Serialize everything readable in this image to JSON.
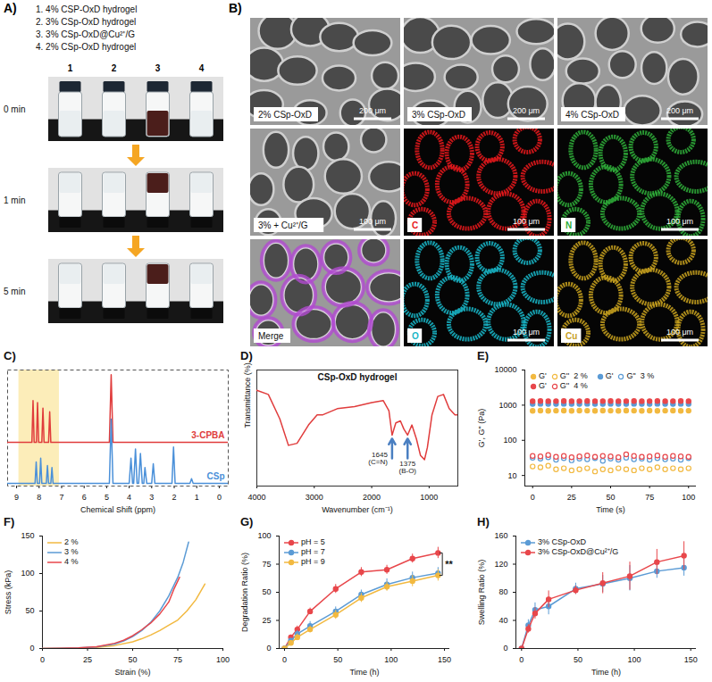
{
  "panels": {
    "A": {
      "panel": "A)",
      "items": [
        "1. 4% CSP-OxD hydrogel",
        "2. 3% CSp-OxD hydrogel",
        "3. 3% CSp-OxD@Cu²⁺/G",
        "4. 2% CSp-OxD hydrogel"
      ],
      "vials": [
        "1",
        "2",
        "3",
        "4"
      ],
      "colors": [
        "#e9eef0",
        "#e9eef0",
        "#4b1e1b",
        "#e9eef0"
      ],
      "times": [
        "0 min",
        "1 min",
        "5 min"
      ]
    },
    "B": {
      "panel": "B)",
      "tiles": [
        {
          "label": "2% CSp-OxD",
          "scale_bar": "200 μm"
        },
        {
          "label": "3% CSp-OxD",
          "scale_bar": "200 μm"
        },
        {
          "label": "4% CSp-OxD",
          "scale_bar": "200 μm"
        },
        {
          "label": "3% + Cu²⁺/G",
          "scale_bar": "100 μm"
        },
        {
          "label": "C",
          "scale_bar": "100 μm",
          "color": "#e8191c"
        },
        {
          "label": "N",
          "scale_bar": "100 μm",
          "color": "#2fae3a"
        },
        {
          "label": "Merge",
          "colors": [
            "#b04ad0",
            "#d9d9d9"
          ]
        },
        {
          "label": "O",
          "scale_bar": "100 μm",
          "color": "#19b6c8"
        },
        {
          "label": "Cu",
          "scale_bar": "100 μm",
          "color": "#c9a21f"
        }
      ]
    }
  },
  "chart_data": [
    {
      "panel": "C)",
      "type": "line",
      "xlabel": "Chemical Shift (ppm)",
      "xlim": [
        9.4,
        -0.4
      ],
      "xticks": [
        9,
        8,
        7,
        6,
        5,
        4,
        3,
        2,
        1,
        0
      ],
      "ylim": [
        0,
        1.25
      ],
      "tick_labels": "x",
      "legend": "inline",
      "highlight_x": [
        7.1,
        8.9
      ],
      "series": [
        {
          "name": "3-CPBA",
          "color": "#e03c3c",
          "x": [
            9.4,
            8.32,
            8.27,
            8.22,
            8.12,
            8.07,
            8.02,
            7.88,
            7.83,
            7.78,
            7.58,
            7.53,
            7.48,
            4.88,
            4.8,
            4.72,
            -0.4
          ],
          "values": [
            0.47,
            0.47,
            0.92,
            0.47,
            0.47,
            0.9,
            0.47,
            0.47,
            0.84,
            0.47,
            0.47,
            0.8,
            0.47,
            0.47,
            1.2,
            0.47,
            0.47
          ]
        },
        {
          "name": "CSp",
          "color": "#4a90d9",
          "x": [
            9.4,
            8.18,
            8.13,
            8.08,
            7.98,
            7.93,
            7.88,
            7.68,
            7.63,
            7.58,
            7.48,
            7.43,
            7.38,
            4.88,
            4.8,
            4.72,
            4.0,
            3.92,
            3.85,
            3.8,
            3.72,
            3.65,
            3.58,
            3.5,
            3.42,
            3.35,
            3.3,
            3.22,
            3.0,
            2.93,
            2.86,
            2.1,
            2.03,
            1.96,
            1.3,
            1.23,
            1.16,
            -0.4
          ],
          "values": [
            0.03,
            0.03,
            0.26,
            0.03,
            0.03,
            0.3,
            0.03,
            0.03,
            0.22,
            0.03,
            0.03,
            0.2,
            0.03,
            0.03,
            0.72,
            0.03,
            0.03,
            0.3,
            0.03,
            0.03,
            0.4,
            0.03,
            0.03,
            0.35,
            0.03,
            0.03,
            0.2,
            0.03,
            0.03,
            0.24,
            0.03,
            0.03,
            0.42,
            0.03,
            0.03,
            0.08,
            0.03,
            0.03
          ]
        }
      ]
    },
    {
      "panel": "D)",
      "type": "line",
      "title": "CSp-OxD hydrogel",
      "xlabel": "Wavenumber (cm⁻¹)",
      "ylabel": "Transmittance (%)",
      "xlim": [
        4000,
        500
      ],
      "xticks": [
        4000,
        3000,
        2000,
        1000
      ],
      "ylim": [
        0.25,
        0.82
      ],
      "tick_labels": "x",
      "annotations": [
        {
          "x": 1645,
          "y": 0.5,
          "text": [
            "1645",
            "(C=N)"
          ]
        },
        {
          "x": 1375,
          "y": 0.5,
          "text": [
            "1375",
            "(B-O)"
          ]
        }
      ],
      "series": [
        {
          "name": "CSp-OxD hydrogel",
          "color": "#e03c3c",
          "x": [
            4000,
            3800,
            3600,
            3450,
            3300,
            3100,
            2950,
            2850,
            2600,
            2300,
            2000,
            1800,
            1700,
            1645,
            1580,
            1500,
            1440,
            1375,
            1300,
            1220,
            1150,
            1080,
            1030,
            950,
            850,
            750,
            650,
            550,
            500
          ],
          "values": [
            0.72,
            0.7,
            0.58,
            0.45,
            0.46,
            0.55,
            0.6,
            0.6,
            0.63,
            0.64,
            0.66,
            0.67,
            0.62,
            0.5,
            0.56,
            0.57,
            0.53,
            0.5,
            0.55,
            0.48,
            0.4,
            0.38,
            0.44,
            0.6,
            0.69,
            0.7,
            0.63,
            0.6,
            0.6
          ]
        }
      ]
    },
    {
      "panel": "E)",
      "type": "scatter",
      "xlabel": "Time (s)",
      "ylabel": "G', G'' (Pa)",
      "log": "y",
      "x": [
        0,
        5,
        10,
        15,
        20,
        25,
        30,
        35,
        40,
        45,
        50,
        55,
        60,
        65,
        70,
        75,
        80,
        85,
        90,
        95,
        100
      ],
      "xlim": [
        -5,
        105
      ],
      "xticks": [
        0,
        25,
        50,
        75,
        100
      ],
      "ylim": [
        5,
        10000
      ],
      "yticks": [
        10,
        100,
        1000,
        10000
      ],
      "legend": "top",
      "series": [
        {
          "name": "G'",
          "group": "2 %",
          "color": "#f2b940",
          "marker": "circle",
          "values": [
            690,
            700,
            690,
            695,
            700,
            690,
            700,
            695,
            690,
            700,
            695,
            690,
            700,
            695,
            690,
            700,
            690,
            695,
            700,
            690,
            695
          ]
        },
        {
          "name": "G''",
          "group": "2 %",
          "color": "#f2b940",
          "marker": "open_circle",
          "values": [
            18,
            17,
            19,
            15,
            16,
            14,
            15,
            16,
            13,
            15,
            14,
            16,
            15,
            14,
            16,
            15,
            17,
            15,
            16,
            15,
            16
          ]
        },
        {
          "name": "G'",
          "group": "3 %",
          "color": "#5b9bd5",
          "marker": "circle",
          "values": [
            1080,
            1090,
            1085,
            1080,
            1090,
            1085,
            1080,
            1090,
            1085,
            1080,
            1090,
            1085,
            1080,
            1090,
            1085,
            1080,
            1090,
            1085,
            1080,
            1090,
            1085
          ]
        },
        {
          "name": "G''",
          "group": "3 %",
          "color": "#5b9bd5",
          "marker": "open_circle",
          "values": [
            32,
            30,
            33,
            28,
            31,
            27,
            30,
            29,
            31,
            26,
            30,
            28,
            32,
            29,
            30,
            28,
            31,
            29,
            30,
            28,
            31
          ]
        },
        {
          "name": "G'",
          "group": "4 %",
          "color": "#e8474b",
          "marker": "circle",
          "values": [
            1300,
            1310,
            1300,
            1305,
            1310,
            1300,
            1305,
            1310,
            1300,
            1305,
            1310,
            1300,
            1305,
            1310,
            1300,
            1305,
            1310,
            1300,
            1305,
            1310,
            1300
          ]
        },
        {
          "name": "G''",
          "group": "4 %",
          "color": "#e8474b",
          "marker": "open_circle",
          "values": [
            36,
            35,
            38,
            34,
            36,
            33,
            35,
            37,
            34,
            36,
            35,
            33,
            40,
            36,
            34,
            35,
            37,
            34,
            36,
            35,
            34
          ]
        }
      ]
    },
    {
      "panel": "F)",
      "type": "line",
      "xlabel": "Strain (%)",
      "ylabel": "Stress (kPa)",
      "xlim": [
        0,
        100
      ],
      "xticks": [
        0,
        25,
        50,
        75,
        100
      ],
      "ylim": [
        0,
        150
      ],
      "yticks": [
        0,
        50,
        100,
        150
      ],
      "legend": "top-left",
      "series": [
        {
          "name": "2 %",
          "color": "#f2b940",
          "x": [
            0,
            10,
            20,
            30,
            40,
            50,
            55,
            60,
            65,
            70,
            75,
            80,
            85,
            90
          ],
          "values": [
            0,
            0.2,
            0.6,
            1.5,
            4,
            9,
            13,
            18,
            24,
            31,
            38,
            50,
            65,
            86
          ]
        },
        {
          "name": "3 %",
          "color": "#5b9bd5",
          "x": [
            0,
            10,
            20,
            30,
            40,
            45,
            50,
            55,
            60,
            65,
            70,
            75,
            78,
            81
          ],
          "values": [
            0,
            0.2,
            0.8,
            2,
            6,
            10,
            16,
            24,
            35,
            50,
            70,
            95,
            115,
            142
          ]
        },
        {
          "name": "4 %",
          "color": "#e8474b",
          "x": [
            0,
            10,
            20,
            30,
            40,
            45,
            50,
            55,
            60,
            65,
            70,
            73,
            76
          ],
          "values": [
            0,
            0.3,
            1,
            2.5,
            7,
            11,
            17,
            25,
            34,
            46,
            62,
            80,
            95
          ]
        }
      ]
    },
    {
      "panel": "G)",
      "type": "line",
      "marker": "circle",
      "xlabel": "Time (h)",
      "ylabel": "Degradation Ratio (%)",
      "x": [
        0,
        6,
        12,
        24,
        48,
        72,
        96,
        120,
        144
      ],
      "xlim": [
        -5,
        155
      ],
      "xticks": [
        0,
        50,
        100,
        150
      ],
      "ylim": [
        0,
        100
      ],
      "yticks": [
        0,
        25,
        50,
        75,
        100
      ],
      "legend": "top-left",
      "annotations": [
        {
          "text": "**",
          "between": [
            "pH = 5",
            "pH = 9"
          ]
        }
      ],
      "series": [
        {
          "name": "pH = 5",
          "color": "#e8474b",
          "values": [
            0,
            10,
            17,
            33,
            53,
            68,
            70,
            80,
            85
          ],
          "errors": [
            0,
            2,
            3,
            3,
            4,
            4,
            4,
            4,
            5
          ]
        },
        {
          "name": "pH = 7",
          "color": "#5b9bd5",
          "values": [
            0,
            7,
            13,
            20,
            33,
            48,
            57,
            63,
            67
          ],
          "errors": [
            0,
            2,
            3,
            4,
            4,
            4,
            5,
            5,
            5
          ]
        },
        {
          "name": "pH = 9",
          "color": "#f2b940",
          "values": [
            0,
            5,
            10,
            17,
            30,
            45,
            55,
            60,
            65
          ],
          "errors": [
            0,
            2,
            3,
            3,
            4,
            4,
            4,
            5,
            5
          ]
        }
      ]
    },
    {
      "panel": "H)",
      "type": "line",
      "marker": "circle",
      "xlabel": "Time (h)",
      "ylabel": "Swelling Ratio (%)",
      "x": [
        0,
        6,
        12,
        24,
        48,
        72,
        96,
        120,
        144
      ],
      "xlim": [
        -5,
        155
      ],
      "xticks": [
        0,
        50,
        100,
        150
      ],
      "ylim": [
        0,
        160
      ],
      "yticks": [
        0,
        40,
        80,
        120,
        160
      ],
      "legend": "top-left",
      "series": [
        {
          "name": "3% CSp-OxD",
          "color": "#5b9bd5",
          "values": [
            0,
            33,
            55,
            60,
            85,
            92,
            100,
            110,
            115
          ],
          "errors": [
            0,
            8,
            10,
            12,
            8,
            12,
            18,
            10,
            12
          ]
        },
        {
          "name": "3% CSp-OxD@Cu²⁺/G",
          "color": "#e8474b",
          "values": [
            0,
            28,
            50,
            70,
            83,
            93,
            103,
            123,
            132
          ],
          "errors": [
            0,
            6,
            8,
            12,
            6,
            15,
            20,
            18,
            20
          ]
        }
      ]
    }
  ]
}
